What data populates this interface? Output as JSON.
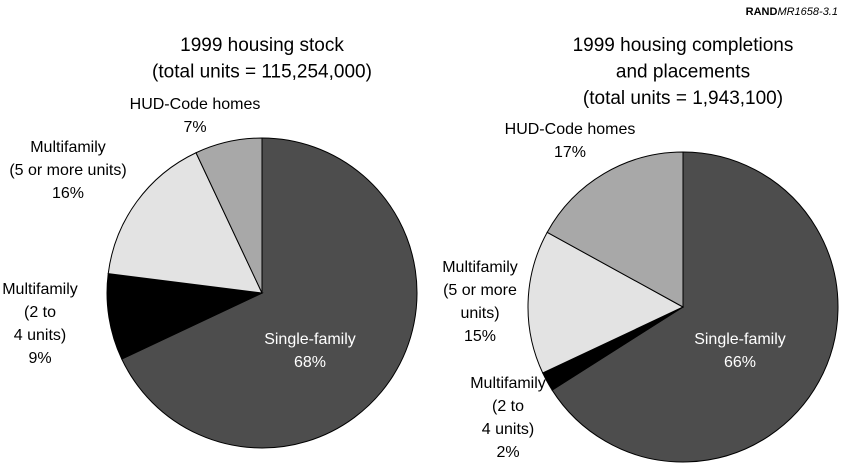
{
  "source_id": {
    "org": "RAND",
    "code": "MR1658-3.1"
  },
  "chart_data": [
    {
      "type": "pie",
      "title": [
        "1999 housing stock",
        "(total units = 115,254,000)"
      ],
      "categories": [
        [
          "Single-family"
        ],
        [
          "Multifamily",
          "(2 to",
          "4 units)"
        ],
        [
          "Multifamily",
          "(5 or more units)"
        ],
        [
          "HUD-Code homes"
        ]
      ],
      "values": [
        68,
        9,
        16,
        7
      ],
      "value_labels": [
        "68%",
        "9%",
        "16%",
        "7%"
      ],
      "colors": [
        "#4d4d4d",
        "#000000",
        "#e3e3e3",
        "#a8a8a8"
      ]
    },
    {
      "type": "pie",
      "title": [
        "1999 housing completions",
        "and placements",
        "(total units = 1,943,100)"
      ],
      "categories": [
        [
          "Single-family"
        ],
        [
          "Multifamily",
          "(2 to",
          "4 units)"
        ],
        [
          "Multifamily",
          "(5 or more",
          "units)"
        ],
        [
          "HUD-Code homes"
        ]
      ],
      "values": [
        66,
        2,
        15,
        17
      ],
      "value_labels": [
        "66%",
        "2%",
        "15%",
        "17%"
      ],
      "colors": [
        "#4d4d4d",
        "#000000",
        "#e3e3e3",
        "#a8a8a8"
      ]
    }
  ]
}
